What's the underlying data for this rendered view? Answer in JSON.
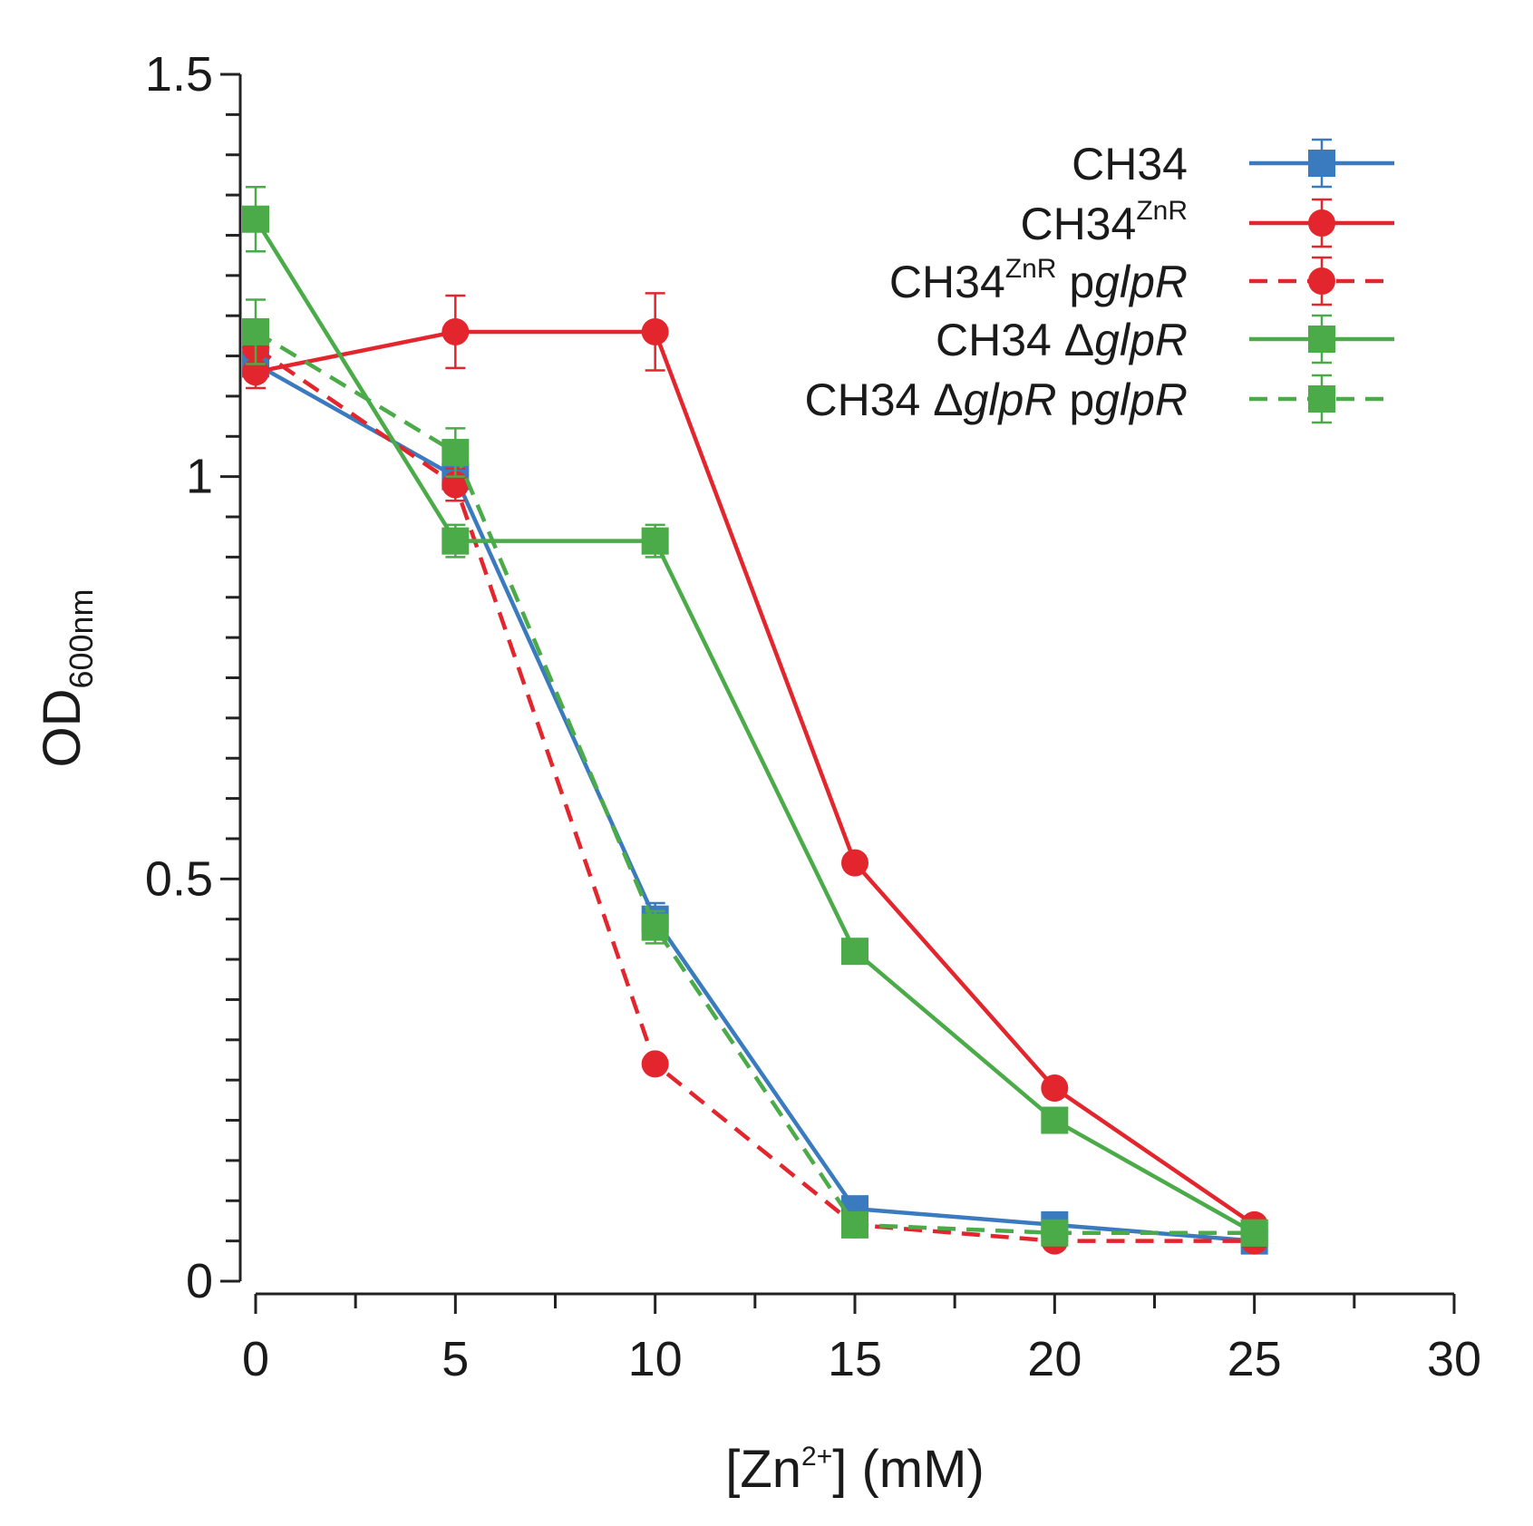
{
  "chart_data": {
    "type": "line",
    "title": "",
    "xlabel": {
      "base": "[Zn",
      "sup": "2+",
      "rest": "] (mM)"
    },
    "ylabel": {
      "base": "OD",
      "sub": "600nm"
    },
    "xlim": [
      0,
      30
    ],
    "ylim": [
      0,
      1.5
    ],
    "xticks": [
      0,
      5,
      10,
      15,
      20,
      25,
      30
    ],
    "xtick_labels": [
      "0",
      "5",
      "10",
      "15",
      "20",
      "25",
      "30"
    ],
    "yticks": [
      0,
      0.5,
      1,
      1.5
    ],
    "ytick_labels": [
      "0",
      "0.5",
      "1",
      "1.5"
    ],
    "legend_position": "top-right",
    "x": [
      0,
      5,
      10,
      15,
      20,
      25
    ],
    "series": [
      {
        "id": "ch34",
        "name_parts": [
          {
            "t": "CH34"
          }
        ],
        "color": "#3a7bbf",
        "marker": "square",
        "dashed": false,
        "values": [
          1.14,
          1.0,
          0.45,
          0.09,
          0.07,
          0.05
        ],
        "errors": [
          0.02,
          0.02,
          0.02,
          0.01,
          0.01,
          0.01
        ]
      },
      {
        "id": "ch34-znr",
        "name_parts": [
          {
            "t": "CH34"
          },
          {
            "t": "ZnR",
            "s": "sup"
          }
        ],
        "color": "#e3262d",
        "marker": "circle",
        "dashed": false,
        "values": [
          1.13,
          1.18,
          1.18,
          0.52,
          0.24,
          0.07
        ],
        "errors": [
          0.02,
          0.045,
          0.048,
          0.01,
          0.01,
          0.01
        ]
      },
      {
        "id": "ch34-znr-pglpr",
        "name_parts": [
          {
            "t": "CH34"
          },
          {
            "t": "ZnR",
            "s": "sup"
          },
          {
            "t": " p"
          },
          {
            "t": "glpR",
            "s": "italic"
          }
        ],
        "color": "#e3262d",
        "marker": "circle",
        "dashed": true,
        "values": [
          1.16,
          0.99,
          0.27,
          0.07,
          0.05,
          0.05
        ],
        "errors": [
          0.03,
          0.02,
          0.01,
          0.01,
          0.01,
          0.01
        ]
      },
      {
        "id": "ch34-dglpr",
        "name_parts": [
          {
            "t": "CH34 Δ"
          },
          {
            "t": "glpR",
            "s": "italic"
          }
        ],
        "color": "#4aab48",
        "marker": "square",
        "dashed": false,
        "values": [
          1.32,
          0.92,
          0.92,
          0.41,
          0.2,
          0.06
        ],
        "errors": [
          0.04,
          0.02,
          0.02,
          0.01,
          0.01,
          0.01
        ]
      },
      {
        "id": "ch34-dglpr-pglpr",
        "name_parts": [
          {
            "t": "CH34 Δ"
          },
          {
            "t": "glpR",
            "s": "italic"
          },
          {
            "t": " p"
          },
          {
            "t": "glpR",
            "s": "italic"
          }
        ],
        "color": "#4aab48",
        "marker": "square",
        "dashed": true,
        "values": [
          1.18,
          1.03,
          0.44,
          0.07,
          0.06,
          0.06
        ],
        "errors": [
          0.04,
          0.03,
          0.02,
          0.01,
          0.01,
          0.01
        ]
      }
    ]
  }
}
